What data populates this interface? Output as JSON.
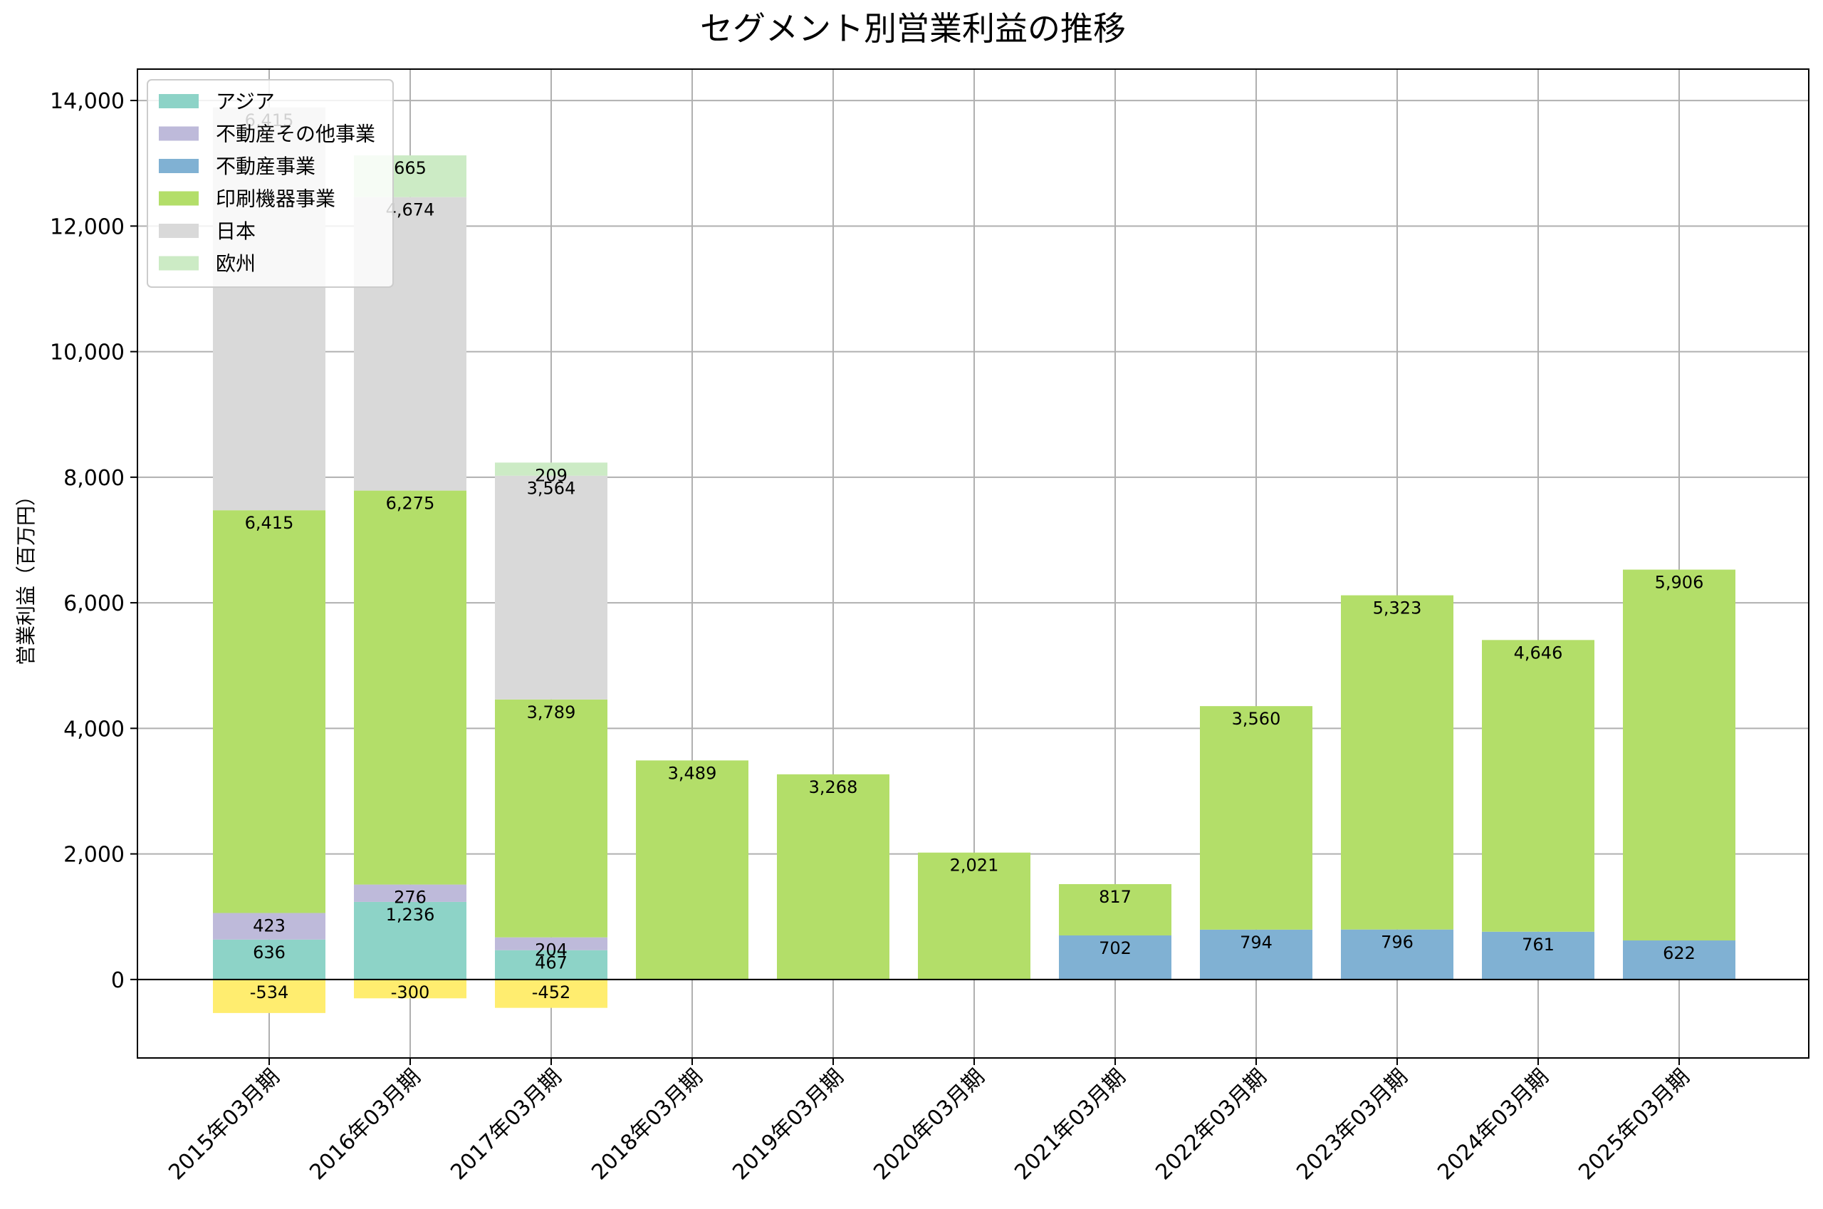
{
  "chart_data": {
    "type": "bar",
    "stacked": true,
    "title": "セグメント別営業利益の推移",
    "ylabel": "営業利益（百万円）",
    "xlabel": "",
    "ylim": [
      -1250,
      14500
    ],
    "yticks": [
      0,
      2000,
      4000,
      6000,
      8000,
      10000,
      12000,
      14000
    ],
    "ytick_labels": [
      "0",
      "2,000",
      "4,000",
      "6,000",
      "8,000",
      "10,000",
      "12,000",
      "14,000"
    ],
    "grid": true,
    "legend_position": "top-left",
    "categories": [
      "2015年03月期",
      "2016年03月期",
      "2017年03月期",
      "2018年03月期",
      "2019年03月期",
      "2020年03月期",
      "2021年03月期",
      "2022年03月期",
      "2023年03月期",
      "2024年03月期",
      "2025年03月期"
    ],
    "series": [
      {
        "name": "アジア",
        "color": "#8dd3c7",
        "values": [
          636,
          1236,
          467,
          null,
          null,
          null,
          null,
          null,
          null,
          null,
          null
        ]
      },
      {
        "name": "不動産その他事業",
        "color": "#bebada",
        "values": [
          423,
          276,
          204,
          null,
          null,
          null,
          null,
          null,
          null,
          null,
          null
        ]
      },
      {
        "name": "不動産事業",
        "color": "#80b1d3",
        "values": [
          null,
          null,
          null,
          null,
          null,
          null,
          702,
          794,
          796,
          761,
          622
        ]
      },
      {
        "name": "印刷機器事業",
        "color": "#b3de69",
        "values": [
          6415,
          6275,
          3789,
          3489,
          3268,
          2021,
          817,
          3560,
          5323,
          4646,
          5906
        ]
      },
      {
        "name": "日本",
        "color": "#d9d9d9",
        "values": [
          6415,
          4674,
          3564,
          null,
          null,
          null,
          null,
          null,
          null,
          null,
          null
        ]
      },
      {
        "name": "欧州",
        "color": "#ccebc5",
        "values": [
          null,
          665,
          209,
          null,
          null,
          null,
          null,
          null,
          null,
          null,
          null
        ]
      },
      {
        "name": "",
        "color": "#ffed6f",
        "legend": false,
        "values": [
          -534,
          -300,
          -452,
          null,
          null,
          null,
          null,
          null,
          null,
          null,
          null
        ]
      }
    ]
  }
}
